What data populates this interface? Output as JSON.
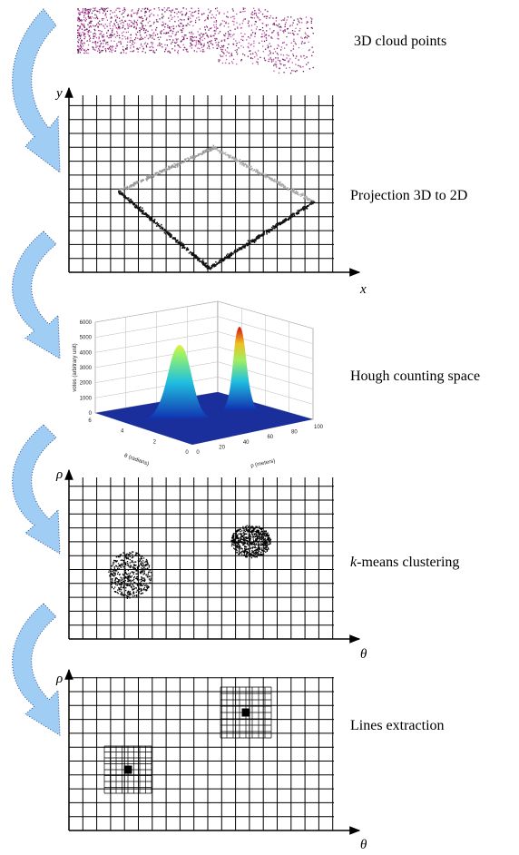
{
  "stages": [
    {
      "label": "3D cloud points"
    },
    {
      "label": "Projection 3D to 2D",
      "y_axis": "y",
      "x_axis": "x"
    },
    {
      "label": "Hough counting space",
      "z_title": "votes (arbitrary unit)",
      "theta_title": "θ (radians)",
      "rho_title": "ρ (meters)",
      "z_ticks": [
        "0",
        "1000",
        "2000",
        "3000",
        "4000",
        "5000",
        "6000"
      ],
      "theta_ticks": [
        "6",
        "4",
        "2",
        "0"
      ],
      "rho_ticks": [
        "0",
        "20",
        "40",
        "60",
        "80",
        "100"
      ]
    },
    {
      "label_italic": "k",
      "label": "-means clustering",
      "y_axis": "ρ",
      "x_axis": "θ"
    },
    {
      "label": "Lines extraction",
      "y_axis": "ρ",
      "x_axis": "θ"
    }
  ]
}
